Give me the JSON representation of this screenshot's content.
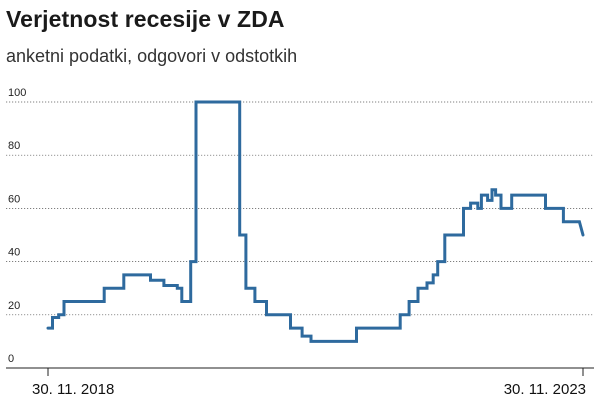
{
  "chart_data": {
    "type": "line",
    "title": "Verjetnost recesije v ZDA",
    "subtitle": "anketni podatki, odgovori v odstotkih",
    "xlabel": "",
    "ylabel": "",
    "ylim": [
      0,
      100
    ],
    "yticks": [
      0,
      20,
      40,
      60,
      80,
      100
    ],
    "x_tick_labels": [
      "30. 11. 2018",
      "30. 11. 2023"
    ],
    "x_range_months": [
      0,
      60
    ],
    "series_color": "#2e6a9e",
    "series": [
      {
        "name": "Verjetnost recesije",
        "step": true,
        "points": [
          [
            0,
            15
          ],
          [
            0.5,
            15
          ],
          [
            0.5,
            19
          ],
          [
            1.2,
            19
          ],
          [
            1.2,
            20
          ],
          [
            1.8,
            20
          ],
          [
            1.8,
            25
          ],
          [
            6.3,
            25
          ],
          [
            6.3,
            30
          ],
          [
            8.5,
            30
          ],
          [
            8.5,
            35
          ],
          [
            11.5,
            35
          ],
          [
            11.5,
            33
          ],
          [
            13,
            33
          ],
          [
            13,
            31
          ],
          [
            14.5,
            31
          ],
          [
            14.5,
            30
          ],
          [
            15,
            30
          ],
          [
            15,
            25
          ],
          [
            16,
            25
          ],
          [
            16,
            40
          ],
          [
            16.6,
            40
          ],
          [
            16.6,
            100
          ],
          [
            21.5,
            100
          ],
          [
            21.5,
            50
          ],
          [
            22.2,
            50
          ],
          [
            22.2,
            30
          ],
          [
            23.2,
            30
          ],
          [
            23.2,
            25
          ],
          [
            24.5,
            25
          ],
          [
            24.5,
            20
          ],
          [
            27.2,
            20
          ],
          [
            27.2,
            15
          ],
          [
            28.5,
            15
          ],
          [
            28.5,
            12
          ],
          [
            29.5,
            12
          ],
          [
            29.5,
            10
          ],
          [
            34.6,
            10
          ],
          [
            34.6,
            15
          ],
          [
            39.5,
            15
          ],
          [
            39.5,
            20
          ],
          [
            40.5,
            20
          ],
          [
            40.5,
            25
          ],
          [
            41.5,
            25
          ],
          [
            41.5,
            30
          ],
          [
            42.5,
            30
          ],
          [
            42.5,
            32
          ],
          [
            43.2,
            32
          ],
          [
            43.2,
            35
          ],
          [
            43.7,
            35
          ],
          [
            43.7,
            40
          ],
          [
            44.5,
            40
          ],
          [
            44.5,
            50
          ],
          [
            46.6,
            50
          ],
          [
            46.6,
            60
          ],
          [
            47.4,
            60
          ],
          [
            47.4,
            62
          ],
          [
            48.2,
            62
          ],
          [
            48.2,
            60
          ],
          [
            48.6,
            60
          ],
          [
            48.6,
            65
          ],
          [
            49.3,
            65
          ],
          [
            49.3,
            63
          ],
          [
            49.8,
            63
          ],
          [
            49.8,
            67
          ],
          [
            50.2,
            67
          ],
          [
            50.2,
            65
          ],
          [
            50.8,
            65
          ],
          [
            50.8,
            60
          ],
          [
            52.0,
            60
          ],
          [
            52.0,
            65
          ],
          [
            55.8,
            65
          ],
          [
            55.8,
            60
          ],
          [
            57.8,
            60
          ],
          [
            57.8,
            55
          ],
          [
            59.6,
            55
          ],
          [
            60,
            50
          ]
        ]
      }
    ]
  }
}
